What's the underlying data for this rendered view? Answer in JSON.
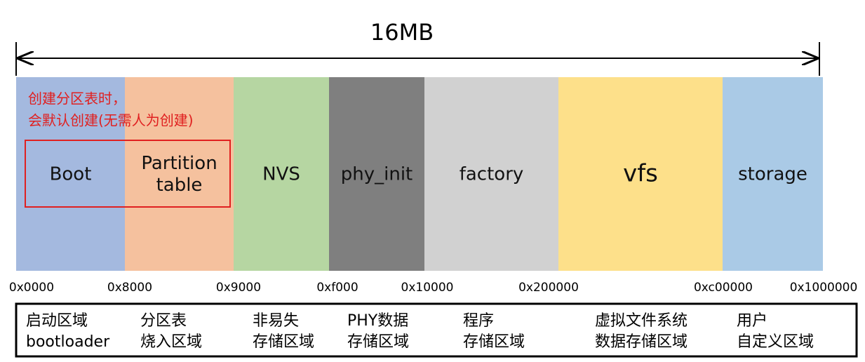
{
  "header": {
    "title": "16MB"
  },
  "note": {
    "lines": [
      "创建分区表时，",
      "会默认创建(无需人为创建)"
    ]
  },
  "segments": [
    {
      "label": [
        "Boot"
      ],
      "color": "#a4b9df"
    },
    {
      "label": [
        "Partition",
        "table"
      ],
      "color": "#f5c19e"
    },
    {
      "label": [
        "NVS"
      ],
      "color": "#b6d6a2"
    },
    {
      "label": [
        "phy_init"
      ],
      "color": "#7f7f7f"
    },
    {
      "label": [
        "factory"
      ],
      "color": "#d1d1d1"
    },
    {
      "label": [
        "vfs"
      ],
      "color": "#fde08a"
    },
    {
      "label": [
        "storage"
      ],
      "color": "#aacae6"
    }
  ],
  "addresses": [
    "0x0000",
    "0x8000",
    "0x9000",
    "0xf000",
    "0x10000",
    "0x200000",
    "0xc00000",
    "0x1000000"
  ],
  "descriptions": [
    [
      "启动区域",
      "bootloader"
    ],
    [
      "分区表",
      "烧入区域"
    ],
    [
      "非易失",
      "存储区域"
    ],
    [
      "PHY数据",
      "存储区域"
    ],
    [
      "程序",
      "存储区域"
    ],
    [
      "虚拟文件系统",
      "数据存储区域"
    ],
    [
      "用户",
      "自定义区域"
    ]
  ]
}
